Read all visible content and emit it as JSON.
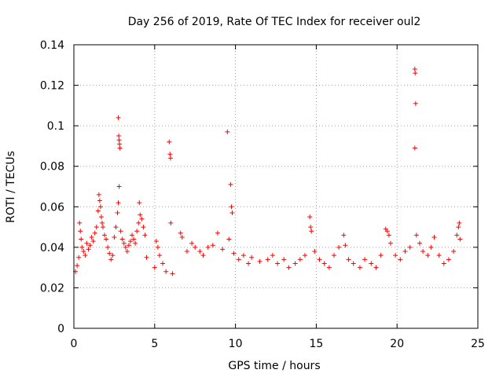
{
  "chart_data": {
    "type": "scatter",
    "title": "Day 256 of 2019, Rate Of TEC Index for receiver oul2",
    "xlabel": "GPS time / hours",
    "ylabel": "ROTI / TECUs",
    "xlim": [
      0,
      25
    ],
    "ylim": [
      0,
      0.14
    ],
    "xticks": [
      0,
      5,
      10,
      15,
      20,
      25
    ],
    "xtick_labels": [
      "0",
      "5",
      "10",
      "15",
      "20",
      "25"
    ],
    "yticks": [
      0,
      0.02,
      0.04,
      0.06,
      0.08,
      0.1,
      0.12,
      0.14
    ],
    "ytick_labels": [
      "0",
      "0.02",
      "0.04",
      "0.06",
      "0.08",
      "0.1",
      "0.12",
      "0.14"
    ],
    "grid": true,
    "marker": "plus",
    "colors": {
      "points": "#ff0000",
      "grid": "#a0a0a0",
      "axes": "#000000"
    },
    "series": [
      {
        "points": [
          [
            0.1,
            0.028
          ],
          [
            0.2,
            0.031
          ],
          [
            0.3,
            0.035
          ],
          [
            0.35,
            0.052
          ],
          [
            0.4,
            0.048
          ],
          [
            0.45,
            0.044
          ],
          [
            0.5,
            0.04
          ],
          [
            0.6,
            0.038
          ],
          [
            0.7,
            0.036
          ],
          [
            0.8,
            0.042
          ],
          [
            0.9,
            0.039
          ],
          [
            1.0,
            0.041
          ],
          [
            1.1,
            0.045
          ],
          [
            1.2,
            0.043
          ],
          [
            1.3,
            0.047
          ],
          [
            1.4,
            0.05
          ],
          [
            1.5,
            0.058
          ],
          [
            1.55,
            0.066
          ],
          [
            1.6,
            0.063
          ],
          [
            1.65,
            0.06
          ],
          [
            1.7,
            0.055
          ],
          [
            1.75,
            0.052
          ],
          [
            1.8,
            0.05
          ],
          [
            1.9,
            0.046
          ],
          [
            2.0,
            0.044
          ],
          [
            2.1,
            0.04
          ],
          [
            2.2,
            0.037
          ],
          [
            2.3,
            0.034
          ],
          [
            2.4,
            0.036
          ],
          [
            2.5,
            0.045
          ],
          [
            2.6,
            0.05
          ],
          [
            2.7,
            0.057
          ],
          [
            2.75,
            0.104
          ],
          [
            2.78,
            0.095
          ],
          [
            2.8,
            0.093
          ],
          [
            2.82,
            0.091
          ],
          [
            2.85,
            0.089
          ],
          [
            2.8,
            0.07
          ],
          [
            2.75,
            0.062
          ],
          [
            2.9,
            0.048
          ],
          [
            3.0,
            0.044
          ],
          [
            3.1,
            0.042
          ],
          [
            3.2,
            0.04
          ],
          [
            3.3,
            0.038
          ],
          [
            3.4,
            0.041
          ],
          [
            3.5,
            0.043
          ],
          [
            3.6,
            0.046
          ],
          [
            3.7,
            0.044
          ],
          [
            3.8,
            0.042
          ],
          [
            3.9,
            0.048
          ],
          [
            4.0,
            0.052
          ],
          [
            4.05,
            0.062
          ],
          [
            4.1,
            0.056
          ],
          [
            4.2,
            0.054
          ],
          [
            4.3,
            0.05
          ],
          [
            4.4,
            0.046
          ],
          [
            4.5,
            0.035
          ],
          [
            5.0,
            0.03
          ],
          [
            5.1,
            0.043
          ],
          [
            5.2,
            0.04
          ],
          [
            5.3,
            0.036
          ],
          [
            5.5,
            0.032
          ],
          [
            5.7,
            0.028
          ],
          [
            5.9,
            0.092
          ],
          [
            5.95,
            0.086
          ],
          [
            5.98,
            0.084
          ],
          [
            6.0,
            0.052
          ],
          [
            6.1,
            0.027
          ],
          [
            6.6,
            0.047
          ],
          [
            6.7,
            0.045
          ],
          [
            7.0,
            0.038
          ],
          [
            7.3,
            0.042
          ],
          [
            7.5,
            0.04
          ],
          [
            7.8,
            0.038
          ],
          [
            8.0,
            0.036
          ],
          [
            8.3,
            0.04
          ],
          [
            8.6,
            0.041
          ],
          [
            8.9,
            0.047
          ],
          [
            9.2,
            0.039
          ],
          [
            9.5,
            0.097
          ],
          [
            9.6,
            0.044
          ],
          [
            9.7,
            0.071
          ],
          [
            9.75,
            0.06
          ],
          [
            9.8,
            0.057
          ],
          [
            9.9,
            0.037
          ],
          [
            10.2,
            0.034
          ],
          [
            10.5,
            0.036
          ],
          [
            10.8,
            0.032
          ],
          [
            11.0,
            0.035
          ],
          [
            11.5,
            0.033
          ],
          [
            12.0,
            0.034
          ],
          [
            12.3,
            0.036
          ],
          [
            12.6,
            0.032
          ],
          [
            13.0,
            0.034
          ],
          [
            13.3,
            0.03
          ],
          [
            13.7,
            0.032
          ],
          [
            14.0,
            0.034
          ],
          [
            14.3,
            0.036
          ],
          [
            14.6,
            0.055
          ],
          [
            14.65,
            0.05
          ],
          [
            14.7,
            0.048
          ],
          [
            14.9,
            0.038
          ],
          [
            15.2,
            0.034
          ],
          [
            15.5,
            0.032
          ],
          [
            15.8,
            0.03
          ],
          [
            16.1,
            0.036
          ],
          [
            16.4,
            0.04
          ],
          [
            16.7,
            0.046
          ],
          [
            16.8,
            0.041
          ],
          [
            17.0,
            0.034
          ],
          [
            17.3,
            0.032
          ],
          [
            17.7,
            0.03
          ],
          [
            18.0,
            0.034
          ],
          [
            18.4,
            0.032
          ],
          [
            18.7,
            0.03
          ],
          [
            19.0,
            0.036
          ],
          [
            19.3,
            0.049
          ],
          [
            19.4,
            0.048
          ],
          [
            19.5,
            0.046
          ],
          [
            19.6,
            0.042
          ],
          [
            19.9,
            0.036
          ],
          [
            20.2,
            0.034
          ],
          [
            20.5,
            0.038
          ],
          [
            20.8,
            0.04
          ],
          [
            21.1,
            0.128
          ],
          [
            21.12,
            0.126
          ],
          [
            21.15,
            0.111
          ],
          [
            21.1,
            0.089
          ],
          [
            21.2,
            0.046
          ],
          [
            21.4,
            0.042
          ],
          [
            21.6,
            0.038
          ],
          [
            21.9,
            0.036
          ],
          [
            22.1,
            0.04
          ],
          [
            22.3,
            0.045
          ],
          [
            22.6,
            0.036
          ],
          [
            22.9,
            0.032
          ],
          [
            23.2,
            0.034
          ],
          [
            23.5,
            0.038
          ],
          [
            23.7,
            0.046
          ],
          [
            23.8,
            0.05
          ],
          [
            23.85,
            0.052
          ],
          [
            23.9,
            0.044
          ]
        ]
      }
    ]
  }
}
